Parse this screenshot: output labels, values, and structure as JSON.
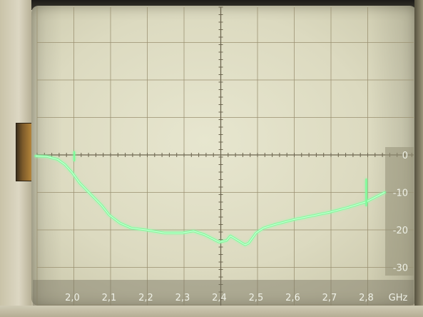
{
  "chart_data": {
    "type": "line",
    "x_unit": "GHz",
    "xlim": [
      1.9,
      2.9
    ],
    "ylim": [
      -33,
      0
    ],
    "x_ticks": [
      2.0,
      2.1,
      2.2,
      2.3,
      2.4,
      2.5,
      2.6,
      2.7,
      2.8
    ],
    "x_tick_labels": [
      "2,0",
      "2,1",
      "2,2",
      "2,3",
      "2,4",
      "2,5",
      "2,6",
      "2,7",
      "2,8"
    ],
    "y_ticks": [
      0,
      -10,
      -20,
      -30
    ],
    "y_tick_labels": [
      "0",
      "-10",
      "-20",
      "-30"
    ],
    "grid": true,
    "trace_color": "#7dfc9a",
    "grid_color": "#9a9070",
    "series": [
      {
        "x": [
          1.9,
          1.93,
          1.96,
          1.98,
          2.0,
          2.02,
          2.05,
          2.08,
          2.1,
          2.13,
          2.16,
          2.2,
          2.25,
          2.3,
          2.33,
          2.36,
          2.38,
          2.4,
          2.42,
          2.43,
          2.45,
          2.47,
          2.48,
          2.5,
          2.52,
          2.55,
          2.6,
          2.65,
          2.7,
          2.75,
          2.8,
          2.85
        ],
        "y": [
          -0.3,
          -0.4,
          -1.2,
          -2.6,
          -4.8,
          -7.5,
          -10.5,
          -13.5,
          -16,
          -18.2,
          -19.5,
          -20,
          -20.8,
          -20.8,
          -20.3,
          -21.3,
          -22.3,
          -23.3,
          -22.8,
          -21.6,
          -22.8,
          -24,
          -23.5,
          -20.8,
          -19.5,
          -18.6,
          -17.3,
          -16.3,
          -15.3,
          -14,
          -12.5,
          -10
        ]
      }
    ],
    "spikes": [
      {
        "x": 2.005,
        "y_top": 0.8,
        "y_bottom": -1.5
      },
      {
        "x": 2.8,
        "y_top": -6.5,
        "y_bottom": -13.5
      }
    ]
  }
}
